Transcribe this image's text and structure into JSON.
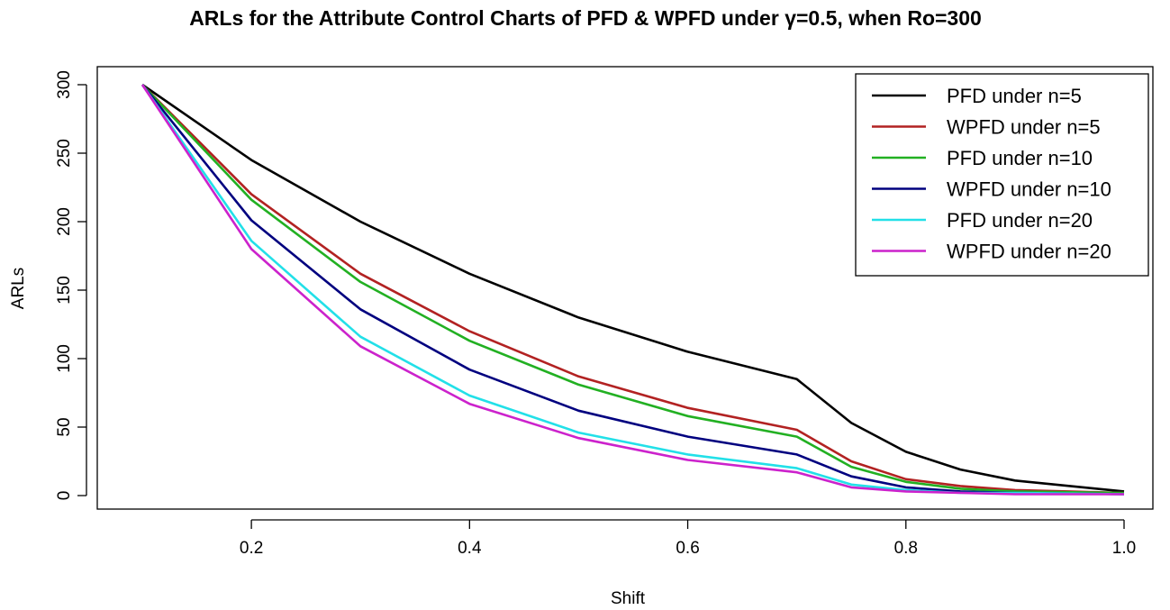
{
  "chart_data": {
    "type": "line",
    "title": "ARLs for the Attribute Control Charts of PFD & WPFD under γ=0.5, when Ro=300",
    "xlabel": "Shift",
    "ylabel": "ARLs",
    "xlim": [
      0.1,
      1.0
    ],
    "ylim": [
      0,
      300
    ],
    "x_ticks": [
      "0.2",
      "0.4",
      "0.6",
      "0.8",
      "1.0"
    ],
    "y_ticks": [
      "0",
      "50",
      "100",
      "150",
      "200",
      "250",
      "300"
    ],
    "x": [
      0.1,
      0.2,
      0.3,
      0.4,
      0.5,
      0.6,
      0.7,
      0.75,
      0.8,
      0.85,
      0.9,
      1.0
    ],
    "legend_position": "top-right",
    "series": [
      {
        "name": "PFD under n=5",
        "color": "#000000",
        "values": [
          300,
          245,
          200,
          162,
          130,
          105,
          85,
          53,
          32,
          19,
          11,
          3
        ]
      },
      {
        "name": "WPFD under n=5",
        "color": "#b22222",
        "values": [
          300,
          220,
          162,
          120,
          87,
          64,
          48,
          25,
          12,
          7,
          4,
          2
        ]
      },
      {
        "name": "PFD under n=10",
        "color": "#22b022",
        "values": [
          300,
          216,
          156,
          113,
          81,
          58,
          43,
          21,
          10,
          5,
          3,
          2
        ]
      },
      {
        "name": "WPFD under n=10",
        "color": "#00007f",
        "values": [
          300,
          201,
          136,
          92,
          62,
          43,
          30,
          14,
          6,
          3,
          2,
          1
        ]
      },
      {
        "name": "PFD under n=20",
        "color": "#22e0e8",
        "values": [
          300,
          186,
          116,
          73,
          46,
          30,
          20,
          8,
          4,
          2,
          2,
          1
        ]
      },
      {
        "name": "WPFD under n=20",
        "color": "#cc22cc",
        "values": [
          300,
          180,
          109,
          67,
          42,
          26,
          17,
          6,
          3,
          2,
          1,
          1
        ]
      }
    ]
  }
}
